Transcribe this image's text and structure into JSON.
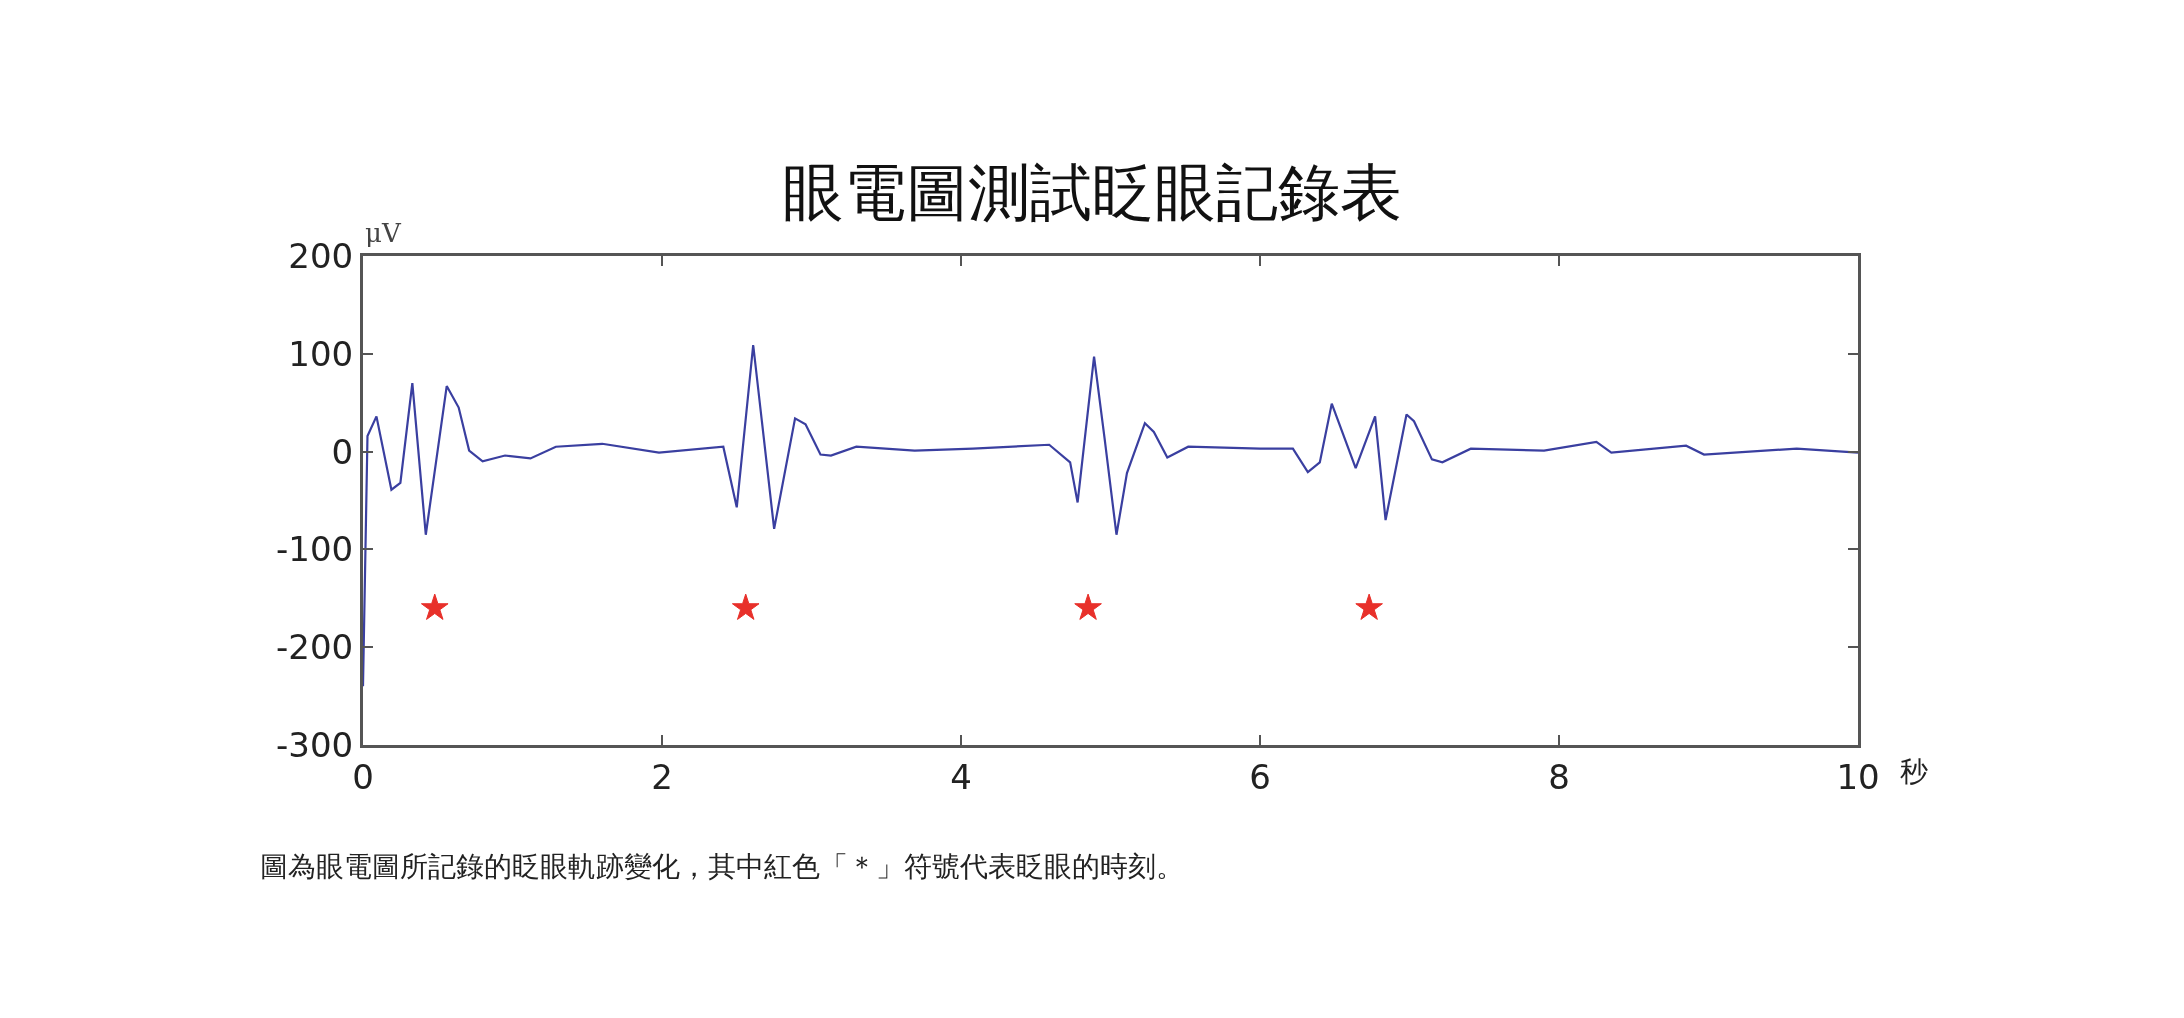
{
  "chart_data": {
    "type": "line",
    "title": "眼電圖測試眨眼記錄表",
    "xlabel": "秒",
    "ylabel": "μV",
    "xlim": [
      0,
      10
    ],
    "xticks": [
      0,
      2,
      4,
      6,
      8,
      10
    ],
    "ylim": [
      -300,
      200
    ],
    "yticks": [
      -300,
      -200,
      -100,
      0,
      100,
      200
    ],
    "series": [
      {
        "color": "#3a3fa0",
        "marker": "none",
        "x": [
          0,
          0.03,
          0.09,
          0.19,
          0.25,
          0.33,
          0.42,
          0.56,
          0.64,
          0.71,
          0.8,
          0.95,
          1.12,
          1.29,
          1.6,
          1.98,
          2.41,
          2.5,
          2.61,
          2.75,
          2.89,
          2.96,
          3.06,
          3.13,
          3.3,
          3.69,
          4.08,
          4.59,
          4.73,
          4.78,
          4.89,
          4.96,
          5.04,
          5.11,
          5.23,
          5.29,
          5.38,
          5.52,
          6.0,
          6.22,
          6.32,
          6.4,
          6.48,
          6.64,
          6.77,
          6.84,
          6.98,
          7.03,
          7.15,
          7.22,
          7.41,
          7.9,
          8.25,
          8.35,
          8.85,
          8.97,
          9.59,
          10.0
        ],
        "values": [
          -240,
          16,
          36,
          -39,
          -32,
          70,
          -85,
          67,
          45,
          1,
          -10,
          -4,
          -7,
          5,
          8,
          -1,
          5,
          -57,
          109,
          -79,
          34,
          28,
          -3,
          -4,
          5,
          1,
          3,
          7,
          -11,
          -52,
          97,
          14,
          -85,
          -22,
          29,
          20,
          -6,
          5,
          3,
          3,
          -21,
          -11,
          49,
          -17,
          36,
          -70,
          38,
          31,
          -8,
          -11,
          3,
          1,
          10,
          -1,
          6,
          -3,
          3,
          -1
        ]
      },
      {
        "type": "scatter",
        "color": "#e8302a",
        "marker": "star",
        "x": [
          0.48,
          2.56,
          4.85,
          6.73
        ],
        "values": [
          -160,
          -160,
          -160,
          -160
        ]
      }
    ],
    "annotations": [
      "圖為眼電圖所記錄的眨眼軌跡變化，其中紅色「＊」符號代表眨眼的時刻。"
    ]
  }
}
